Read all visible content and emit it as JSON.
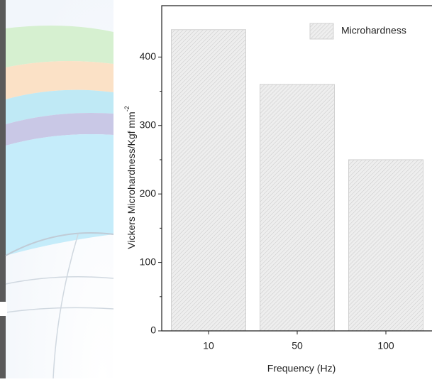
{
  "chart_data": {
    "type": "bar",
    "y_label": "Vickers Microhardness/Kgf mm",
    "y_label_superscript": "-2",
    "x_label": "Frequency (Hz)",
    "categories": [
      "10",
      "50",
      "100"
    ],
    "series": [
      {
        "name": "Microhardness",
        "color": "#e9e9e9",
        "values": [
          440,
          360,
          250
        ]
      }
    ],
    "ylim": [
      0,
      475
    ],
    "yticks": [
      0,
      100,
      200,
      300,
      400
    ],
    "legend": "upper-right"
  }
}
